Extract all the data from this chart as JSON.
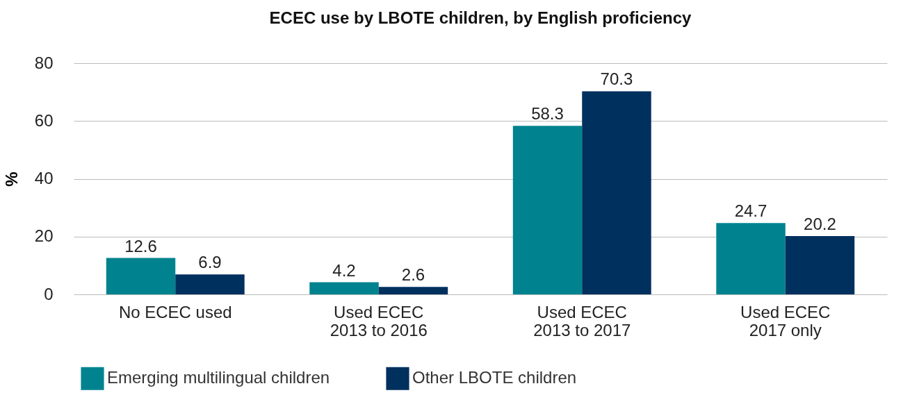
{
  "chart_data": {
    "type": "bar",
    "title": "ECEC use by LBOTE children, by English proficiency",
    "ylabel": "%",
    "categories": [
      "No ECEC used",
      "Used ECEC\n2013 to 2016",
      "Used ECEC\n2013 to 2017",
      "Used ECEC\n2017 only"
    ],
    "series": [
      {
        "name": "Emerging multilingual children",
        "color": "#00838f",
        "values": [
          12.6,
          4.2,
          58.3,
          24.7
        ]
      },
      {
        "name": "Other LBOTE children",
        "color": "#00305e",
        "values": [
          6.9,
          2.6,
          70.3,
          20.2
        ]
      }
    ],
    "ylim": [
      0,
      80
    ],
    "yticks": [
      0,
      20,
      40,
      60,
      80
    ],
    "grid": "y",
    "legend": "bottom",
    "data_labels": true
  }
}
